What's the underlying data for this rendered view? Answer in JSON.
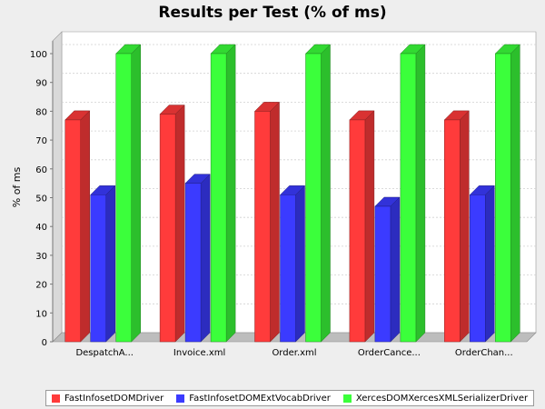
{
  "chart_data": {
    "type": "bar",
    "title": "Results per Test (% of ms)",
    "xlabel": "",
    "ylabel": "% of ms",
    "ylim": [
      0,
      100
    ],
    "yticks": [
      0,
      10,
      20,
      30,
      40,
      50,
      60,
      70,
      80,
      90,
      100
    ],
    "categories": [
      "DespatchA...",
      "Invoice.xml",
      "Order.xml",
      "OrderCance...",
      "OrderChan..."
    ],
    "series": [
      {
        "name": "FastInfosetDOMDriver",
        "color": "#ff3b3b",
        "values": [
          77,
          79,
          80,
          77,
          77
        ]
      },
      {
        "name": "FastInfosetDOMExtVocabDriver",
        "color": "#3b3bff",
        "values": [
          51,
          55,
          51,
          47,
          51
        ]
      },
      {
        "name": "XercesDOMXercesXMLSerializerDriver",
        "color": "#3bff3b",
        "values": [
          100,
          100,
          100,
          100,
          100
        ]
      }
    ],
    "grid": true,
    "legend_position": "bottom"
  }
}
